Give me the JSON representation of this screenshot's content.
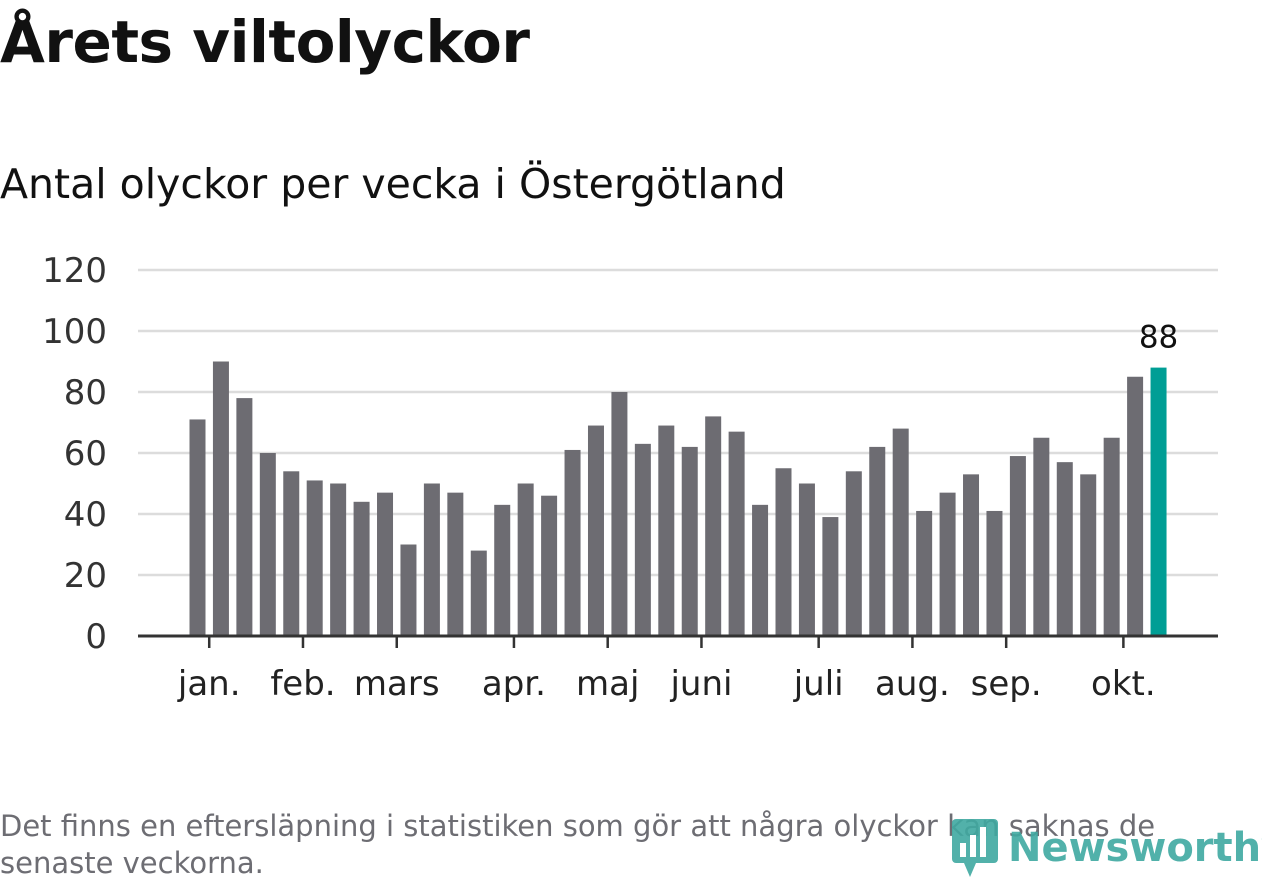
{
  "title": "Årets viltolyckor",
  "subtitle": "Antal olyckor per vecka i Östergötland",
  "footnote": "Det finns en eftersläpning i statistiken som gör att några olyckor kan saknas de senaste veckorna.",
  "logo": {
    "text": "Newsworthy",
    "icon": "bar-chart-icon",
    "color": "#3fa9a1"
  },
  "colors": {
    "bar": "#6d6c72",
    "highlight": "#009e95",
    "grid": "#dcdcdc",
    "axis": "#333333"
  },
  "chart_data": {
    "type": "bar",
    "title": "Årets viltolyckor",
    "subtitle": "Antal olyckor per vecka i Östergötland",
    "xlabel": "",
    "ylabel": "",
    "ylim": [
      0,
      120
    ],
    "yticks": [
      "0",
      "20",
      "40",
      "60",
      "80",
      "100",
      "120"
    ],
    "grid": true,
    "values": [
      71,
      90,
      78,
      60,
      54,
      51,
      50,
      44,
      47,
      30,
      50,
      47,
      28,
      43,
      50,
      46,
      61,
      69,
      80,
      63,
      69,
      62,
      72,
      67,
      43,
      55,
      50,
      39,
      54,
      62,
      68,
      41,
      47,
      53,
      41,
      59,
      65,
      57,
      53,
      65,
      85,
      88
    ],
    "highlight_index": 41,
    "highlight_label": "88",
    "month_labels": [
      {
        "label": "jan.",
        "index": 0.5
      },
      {
        "label": "feb.",
        "index": 4.5
      },
      {
        "label": "mars",
        "index": 8.5
      },
      {
        "label": "apr.",
        "index": 13.5
      },
      {
        "label": "maj",
        "index": 17.5
      },
      {
        "label": "juni",
        "index": 21.5
      },
      {
        "label": "juli",
        "index": 26.5
      },
      {
        "label": "aug.",
        "index": 30.5
      },
      {
        "label": "sep.",
        "index": 34.5
      },
      {
        "label": "okt.",
        "index": 39.5
      }
    ]
  }
}
